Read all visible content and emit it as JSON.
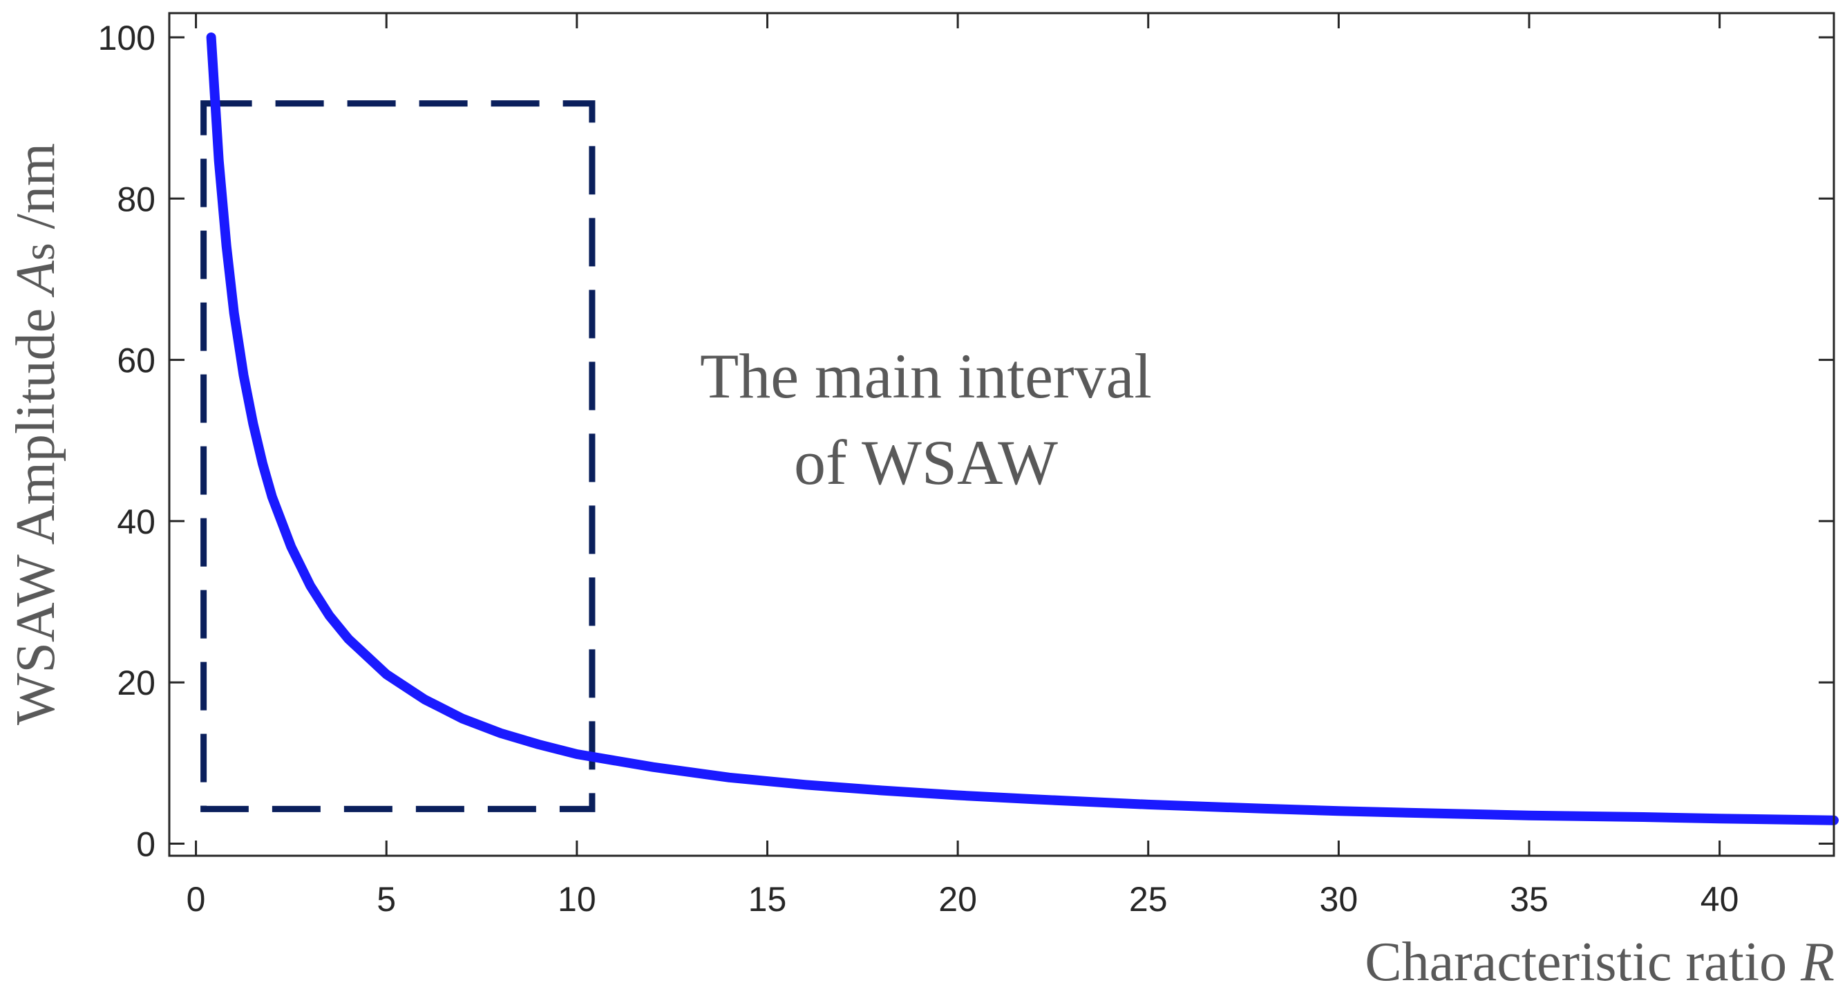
{
  "chart_data": {
    "type": "line",
    "title": "",
    "xlabel": "Characteristic ratio",
    "xlabel_var": "R",
    "ylabel_prefix": "WSAW Amplitude ",
    "ylabel_var": "A",
    "ylabel_sub": "s",
    "ylabel_unit": " /nm",
    "xlim": [
      -0.7,
      43
    ],
    "ylim": [
      -1.5,
      103
    ],
    "xticks": [
      0,
      5,
      10,
      15,
      20,
      25,
      30,
      35,
      40
    ],
    "yticks": [
      0,
      20,
      40,
      60,
      80,
      100
    ],
    "grid": false,
    "series": [
      {
        "name": "WSAW amplitude",
        "color": "#1a1aff",
        "x": [
          0.4,
          0.6,
          0.8,
          1,
          1.25,
          1.5,
          1.75,
          2,
          2.5,
          3,
          3.5,
          4,
          5,
          6,
          7,
          8,
          9,
          10,
          12,
          14,
          16,
          18,
          20,
          22,
          25,
          28,
          30,
          33,
          35,
          38,
          40,
          43
        ],
        "values": [
          100,
          84.7,
          74.1,
          65.8,
          58.1,
          52.1,
          47.1,
          43.0,
          36.8,
          32.0,
          28.3,
          25.4,
          21.0,
          17.9,
          15.5,
          13.7,
          12.3,
          11.1,
          9.5,
          8.2,
          7.3,
          6.6,
          6.0,
          5.5,
          4.85,
          4.35,
          4.05,
          3.7,
          3.5,
          3.3,
          3.1,
          2.9
        ]
      }
    ],
    "annotation": {
      "line1": "The main interval",
      "line2": "of WSAW",
      "box_color": "#0a1f5c",
      "box_x": [
        0.2,
        10.4
      ],
      "box_y": [
        4.3,
        91.8
      ]
    }
  }
}
